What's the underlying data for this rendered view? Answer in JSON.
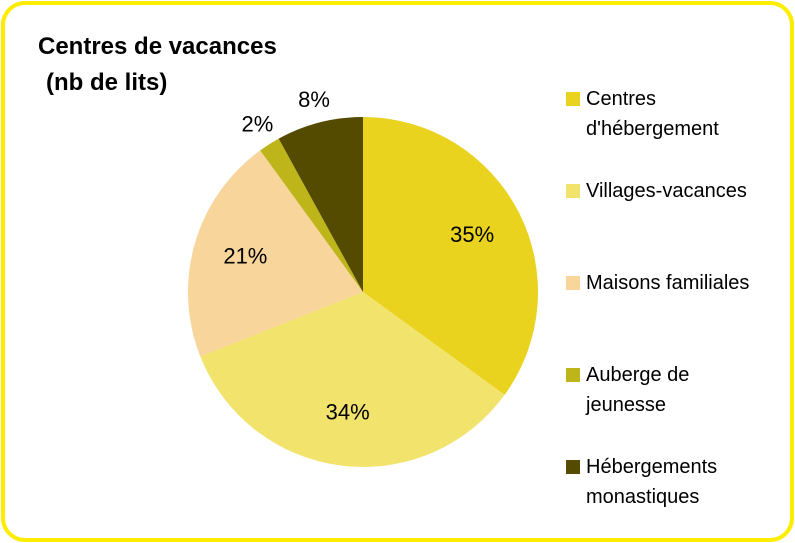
{
  "chart_data": {
    "type": "pie",
    "title": "Centres de vacances",
    "subtitle": "(nb de lits)",
    "categories": [
      "Centres d'hébergement",
      "Villages-vacances",
      "Maisons familiales",
      "Auberge de jeunesse",
      "Hébergements monastiques"
    ],
    "values": [
      35,
      34,
      21,
      2,
      8
    ],
    "value_labels": [
      "35%",
      "34%",
      "21%",
      "2%",
      "8%"
    ],
    "colors": [
      "#E9D31E",
      "#F2E36C",
      "#F8D59B",
      "#BDB51A",
      "#544B00"
    ],
    "legend": "right"
  }
}
